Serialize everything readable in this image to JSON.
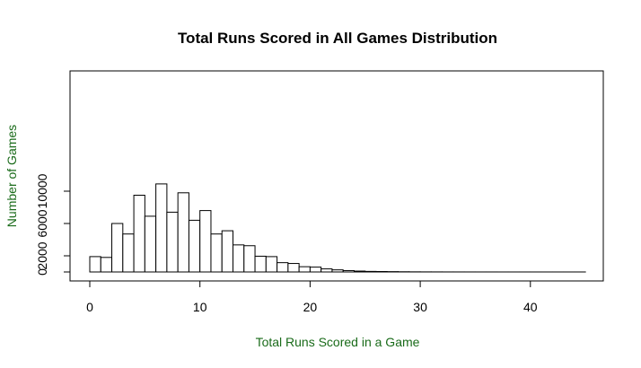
{
  "chart_data": {
    "type": "bar",
    "title": "Total Runs Scored in All Games Distribution",
    "xlabel": "Total Runs Scored in a Game",
    "ylabel": "Number of Games",
    "label_color": "#1a6b1a",
    "bin_width": 1,
    "x_start": 0,
    "values": [
      1900,
      1800,
      6000,
      4700,
      9500,
      6900,
      10900,
      7400,
      9800,
      6400,
      7600,
      4700,
      5100,
      3350,
      3250,
      1950,
      1900,
      1150,
      1050,
      650,
      600,
      380,
      260,
      170,
      110,
      70,
      55,
      40,
      25,
      15,
      10,
      8,
      5,
      4,
      3,
      2,
      2,
      1,
      1,
      1,
      1,
      1,
      1,
      1,
      1
    ],
    "xlim": [
      0,
      45
    ],
    "ylim": [
      0,
      11700
    ],
    "xticks": [
      0,
      10,
      20,
      30,
      40
    ],
    "yticks": [
      0,
      2000,
      6000,
      10000
    ],
    "grid": false,
    "legend": false
  }
}
